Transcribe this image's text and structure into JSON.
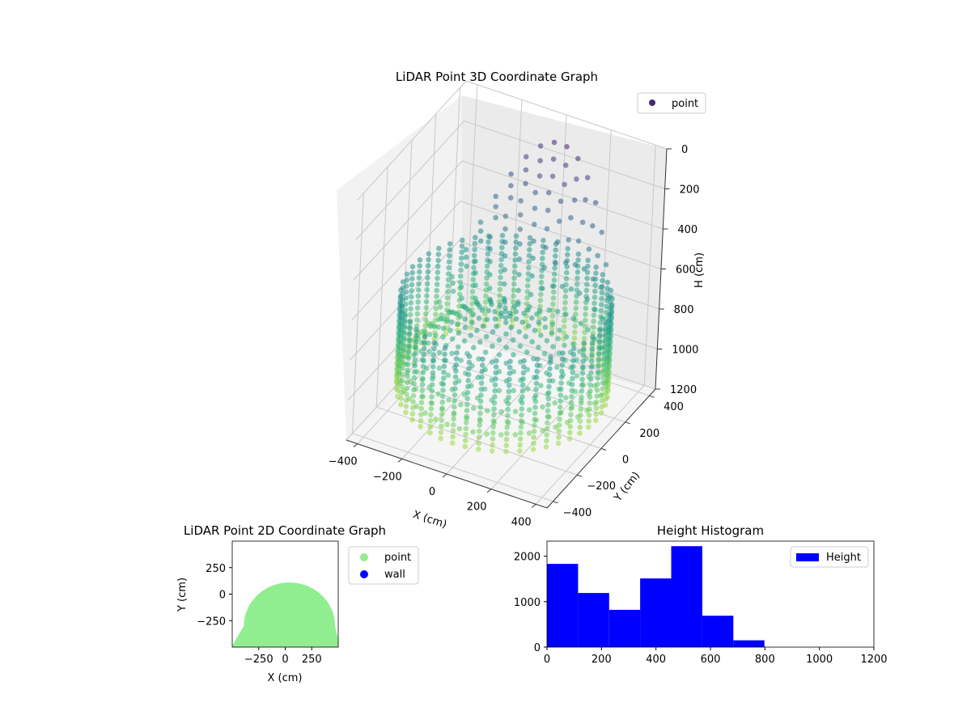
{
  "chart_data": [
    {
      "type": "scatter3d",
      "title": "LiDAR Point 3D Coordinate Graph",
      "xlabel": "X (cm)",
      "ylabel": "Y (cm)",
      "zlabel": "H (cm)",
      "xticks": [
        -400,
        -200,
        0,
        200,
        400
      ],
      "yticks": [
        -400,
        -200,
        0,
        200,
        400
      ],
      "zticks": [
        0,
        200,
        400,
        600,
        800,
        1000,
        1200
      ],
      "xlim": [
        -450,
        450
      ],
      "ylim": [
        -450,
        450
      ],
      "zlim": [
        0,
        1200
      ],
      "z_inverted": true,
      "colormap": "viridis",
      "legend": [
        {
          "label": "point",
          "color": "#482878"
        }
      ],
      "legend_position": "top-right",
      "grid": true,
      "shape": {
        "radius_cm": 420,
        "max_height_cm": 1200,
        "description_series": "point"
      }
    },
    {
      "type": "scatter",
      "title": "LiDAR Point 2D Coordinate Graph",
      "xlabel": "X (cm)",
      "ylabel": "Y (cm)",
      "xticks": [
        -250,
        0,
        250
      ],
      "yticks": [
        250,
        0,
        -250
      ],
      "xlim": [
        -500,
        500
      ],
      "ylim": [
        -500,
        500
      ],
      "series": [
        {
          "name": "point",
          "color": "#90ee90"
        },
        {
          "name": "wall",
          "color": "#0000ff"
        }
      ],
      "legend_position": "outside-right"
    },
    {
      "type": "bar",
      "title": "Height Histogram",
      "xlabel": "",
      "ylabel": "",
      "bin_edges": [
        0,
        114,
        228,
        342,
        456,
        570,
        684,
        798,
        912,
        1026,
        1140
      ],
      "values": [
        1830,
        1190,
        820,
        1510,
        2220,
        690,
        150,
        0,
        0,
        0
      ],
      "xticks": [
        0,
        200,
        400,
        600,
        800,
        1000,
        1200
      ],
      "yticks": [
        0,
        1000,
        2000
      ],
      "xlim": [
        0,
        1200
      ],
      "ylim": [
        0,
        2330
      ],
      "color": "#0000ff",
      "legend": [
        {
          "label": "Height",
          "color": "#0000ff"
        }
      ],
      "legend_position": "top-right"
    }
  ]
}
